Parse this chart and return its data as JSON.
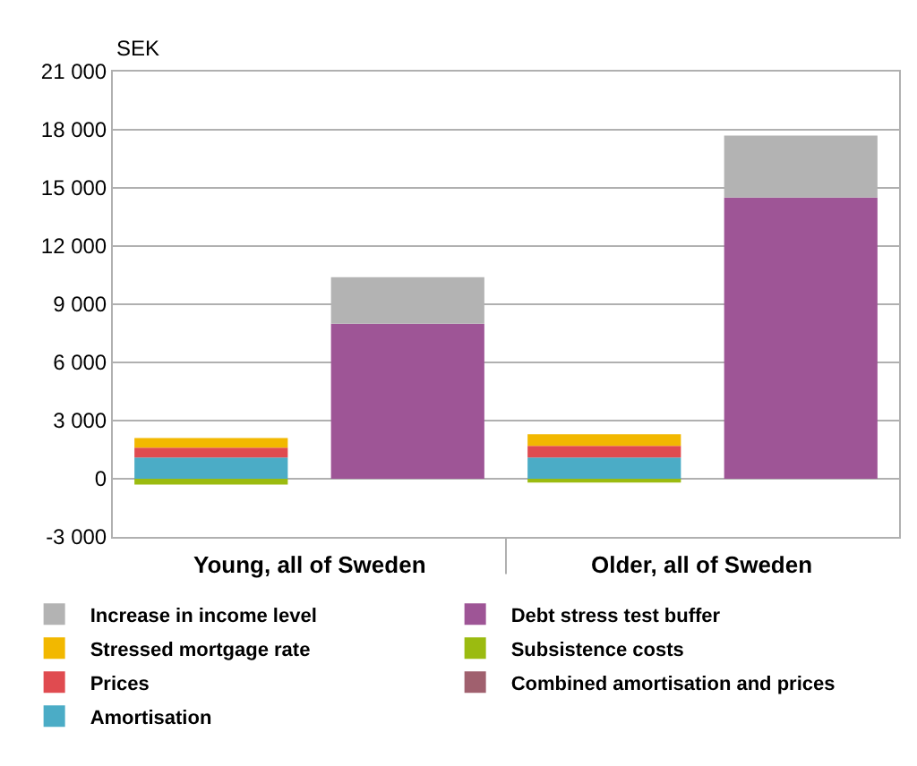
{
  "chart_data": {
    "type": "bar",
    "stacked": true,
    "ylabel": "SEK",
    "categories": [
      null,
      null,
      null,
      null
    ],
    "annotations": [
      "Young, all of Sweden",
      "Older, all of Sweden"
    ],
    "series": [
      {
        "name": "Amortisation",
        "color": "#4bacc6",
        "values": [
          1100,
          null,
          1100,
          null
        ]
      },
      {
        "name": "Combined amortisation and prices",
        "color": "#a0606e",
        "values": [
          null,
          null,
          null,
          null
        ]
      },
      {
        "name": "Prices",
        "color": "#e04b50",
        "values": [
          500,
          null,
          600,
          null
        ]
      },
      {
        "name": "Subsistence costs",
        "color": "#9bbb10",
        "values": [
          -300,
          null,
          -200,
          null
        ]
      },
      {
        "name": "Stressed mortgage rate",
        "color": "#f2b800",
        "values": [
          500,
          null,
          600,
          null
        ]
      },
      {
        "name": "Debt stress test buffer",
        "color": "#9e5596",
        "values": [
          null,
          8000,
          null,
          14500
        ]
      },
      {
        "name": "Increase in income level",
        "color": "#b3b3b3",
        "values": [
          null,
          2400,
          null,
          3200
        ]
      }
    ],
    "ylim": [
      -3000,
      21000
    ],
    "yticks": [
      {
        "value": -3000,
        "label": "-3 000"
      },
      0,
      {
        "value": 3000,
        "label": "3 000"
      },
      {
        "value": 6000,
        "label": "6 000"
      },
      {
        "value": 9000,
        "label": "9 000"
      },
      {
        "value": 12000,
        "label": "12 000"
      },
      {
        "value": 15000,
        "label": "15 000"
      },
      {
        "value": 18000,
        "label": "18 000"
      },
      {
        "value": 21000,
        "label": "21 000"
      }
    ],
    "grid": "y",
    "legend": "bottom"
  }
}
